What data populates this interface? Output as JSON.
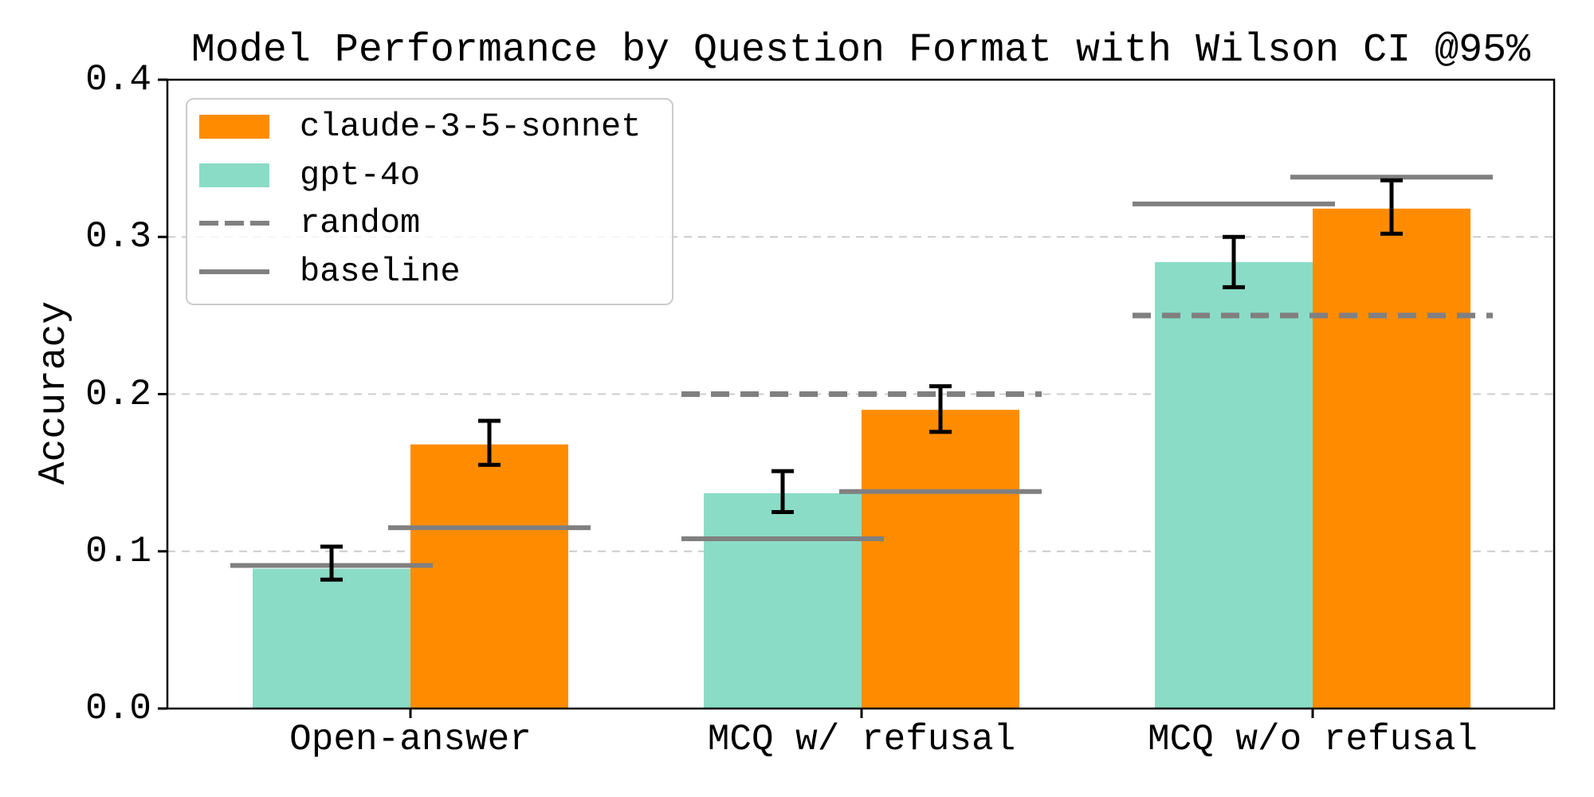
{
  "colors": {
    "claude": "#FF8C00",
    "gpt4o": "#8ADCC7",
    "gray_line": "#808080",
    "grid": "#CCCCCC",
    "legend_border": "#CCCCCC",
    "error_bar": "#000000",
    "spine": "#000000"
  },
  "axes": {
    "y_tick_labels": [
      "0.0",
      "0.1",
      "0.2",
      "0.3",
      "0.4"
    ]
  },
  "legend": {
    "items": [
      {
        "label": "claude-3-5-sonnet",
        "sample": "patch",
        "color": "#FF8C00"
      },
      {
        "label": "gpt-4o",
        "sample": "patch",
        "color": "#8ADCC7"
      },
      {
        "label": "random",
        "sample": "dashed-line",
        "color": "#808080"
      },
      {
        "label": "baseline",
        "sample": "solid-line",
        "color": "#808080"
      }
    ],
    "position": "upper left"
  },
  "chart_data": {
    "type": "bar",
    "title": "Model Performance by Question Format with Wilson CI @95%",
    "xlabel": "",
    "ylabel": "Accuracy",
    "ylim": [
      0,
      0.4
    ],
    "y_ticks": [
      0,
      0.1,
      0.2,
      0.3,
      0.4
    ],
    "gridlines": [
      0.1,
      0.2,
      0.3
    ],
    "grid": true,
    "legend_position": "upper left",
    "categories": [
      "Open-answer",
      "MCQ w/ refusal",
      "MCQ w/o refusal"
    ],
    "series": [
      {
        "name": "claude-3-5-sonnet",
        "color": "#FF8C00",
        "values": [
          0.168,
          0.19,
          0.318
        ],
        "ci_low": [
          0.155,
          0.176,
          0.302
        ],
        "ci_high": [
          0.183,
          0.205,
          0.336
        ],
        "baseline": [
          0.115,
          0.138,
          0.338
        ]
      },
      {
        "name": "gpt-4o",
        "color": "#8ADCC7",
        "values": [
          0.089,
          0.137,
          0.284
        ],
        "ci_low": [
          0.082,
          0.125,
          0.268
        ],
        "ci_high": [
          0.103,
          0.151,
          0.3
        ],
        "baseline": [
          0.091,
          0.108,
          0.321
        ]
      }
    ],
    "random": [
      null,
      0.2,
      0.25
    ],
    "error_bars": "Wilson CI @95%"
  }
}
